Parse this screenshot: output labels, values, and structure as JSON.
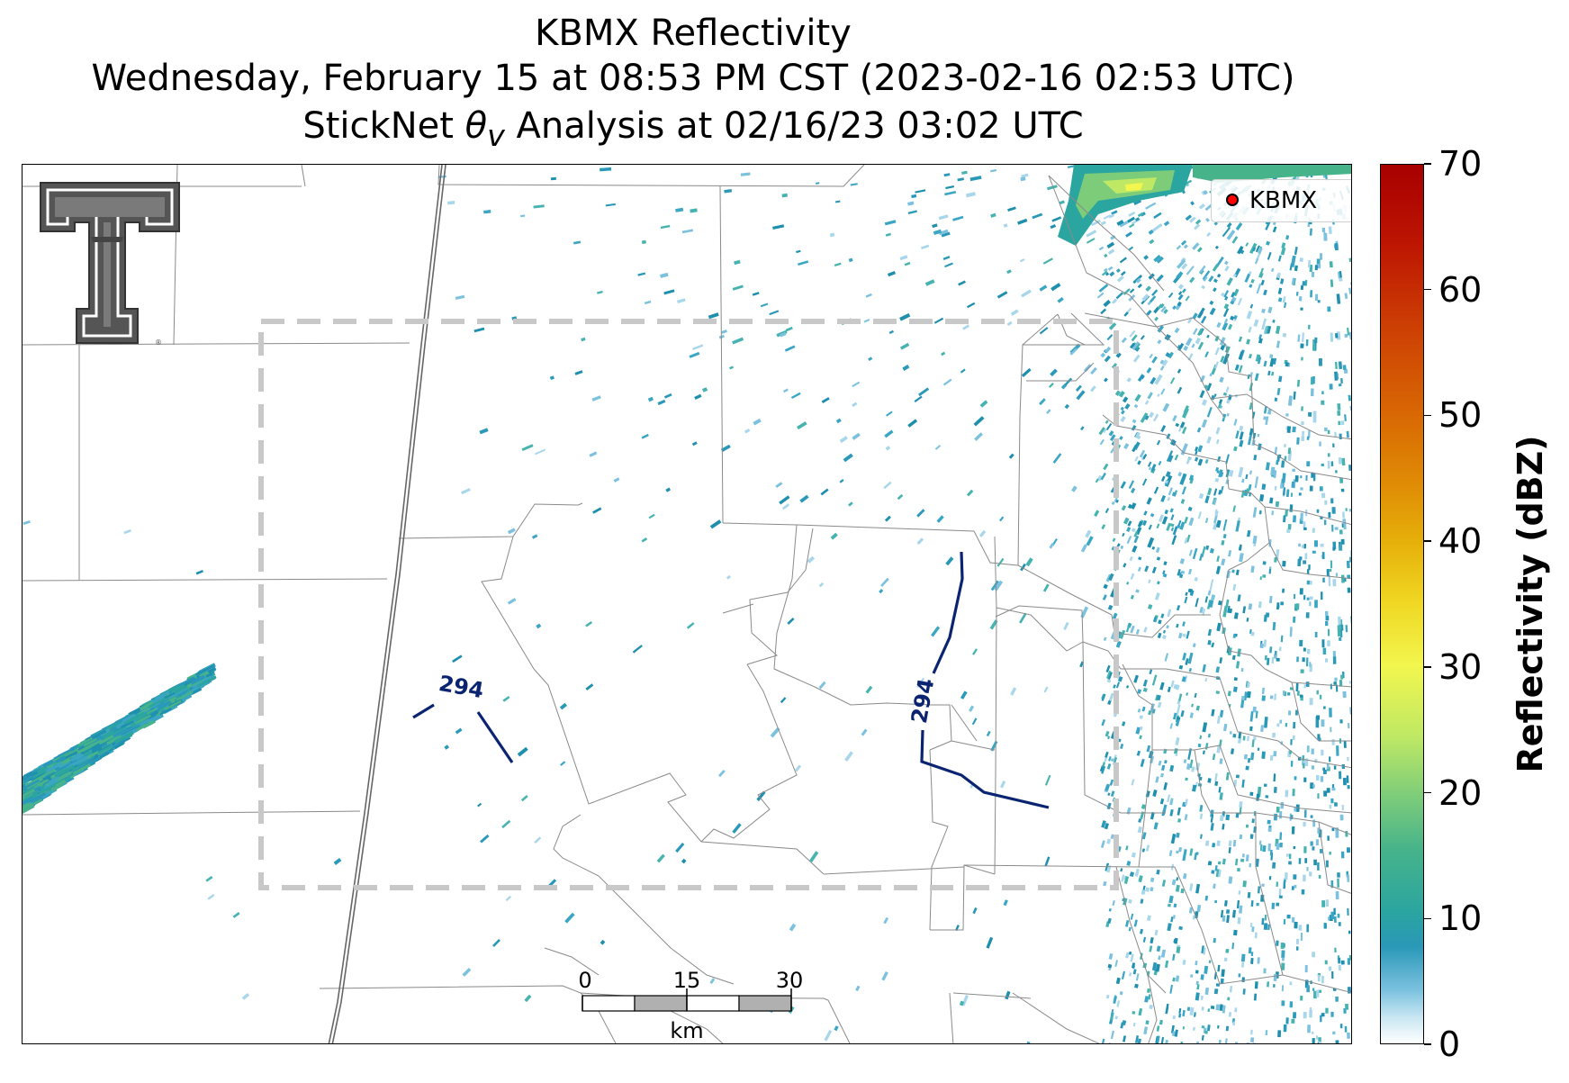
{
  "title": {
    "line1": "KBMX Reflectivity",
    "line2": "Wednesday, February 15 at 08:53 PM CST (2023-02-16 02:53 UTC)",
    "line3_prefix": "StickNet ",
    "line3_symbol": "θ",
    "line3_subscript": "v",
    "line3_suffix": " Analysis at 02/16/23 03:02 UTC"
  },
  "legend": {
    "label": "KBMX",
    "marker_color": "#ff0000"
  },
  "contours": [
    {
      "label": "294",
      "color": "#0a2472"
    },
    {
      "label": "294",
      "color": "#0a2472"
    }
  ],
  "scalebar": {
    "ticks": [
      "0",
      "15",
      "30"
    ],
    "unit": "km"
  },
  "colorbar": {
    "label": "Reflectivity (dBZ)",
    "min": 0,
    "max": 70,
    "ticks": [
      "0",
      "10",
      "20",
      "30",
      "40",
      "50",
      "60",
      "70"
    ],
    "colors": [
      "#ffffff",
      "#7cc2df",
      "#2a98b8",
      "#46b38a",
      "#bfe964",
      "#f2f64e",
      "#e6b00a",
      "#d86604",
      "#bd1502",
      "#a80000"
    ]
  },
  "analysis_box": {
    "style": "dashed",
    "color": "#c8c8c8"
  },
  "logo": {
    "name": "texas-tech-double-t-logo",
    "color": "#555555"
  }
}
